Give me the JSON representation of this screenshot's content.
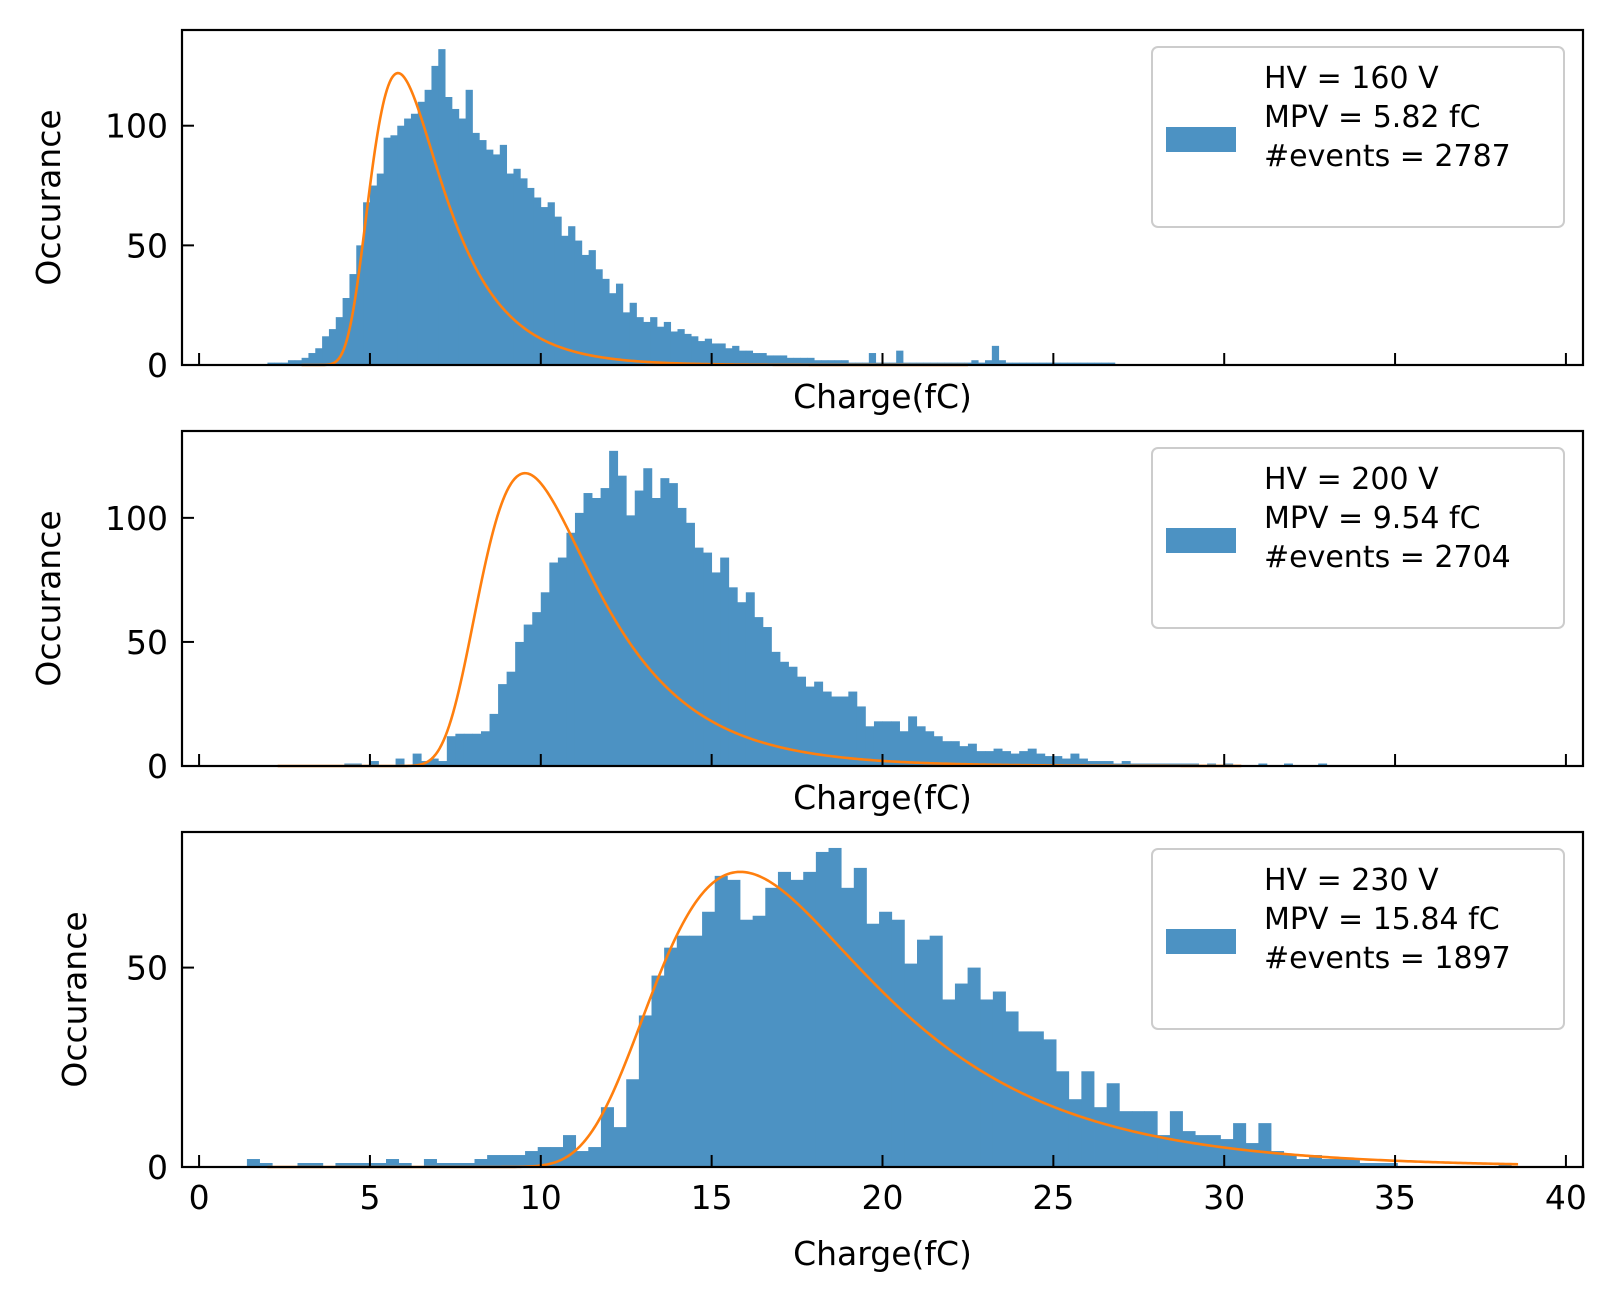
{
  "colors": {
    "histogram": "#4c92c3",
    "fit_curve": "#ff7f0e",
    "axes": "#000000",
    "legend_border": "#cccccc"
  },
  "chart_data": [
    {
      "type": "bar",
      "subtype": "histogram with Landau fit",
      "xlabel": "Charge(fC)",
      "ylabel": "Occurance",
      "xlim": [
        -0.5,
        40.5
      ],
      "ylim": [
        0,
        140
      ],
      "xticks": [
        0,
        5,
        10,
        15,
        20,
        25,
        30,
        35,
        40
      ],
      "xtick_labels_visible": false,
      "yticks": [
        0,
        50,
        100
      ],
      "legend": {
        "position": "top-right",
        "lines": [
          "HV = 160 V",
          "MPV = 5.82 fC",
          "#events = 2787"
        ]
      },
      "histogram": {
        "bin_start": 2.0,
        "bin_width": 0.2,
        "counts": [
          1,
          1,
          1,
          2,
          2,
          3,
          5,
          7,
          12,
          15,
          20,
          28,
          38,
          50,
          68,
          75,
          80,
          95,
          96,
          100,
          103,
          105,
          110,
          115,
          125,
          132,
          112,
          107,
          103,
          115,
          97,
          94,
          90,
          88,
          92,
          80,
          82,
          78,
          74,
          70,
          66,
          68,
          62,
          54,
          58,
          52,
          46,
          48,
          40,
          36,
          30,
          34,
          22,
          26,
          20,
          18,
          20,
          16,
          18,
          14,
          15,
          13,
          12,
          10,
          11,
          9,
          9,
          7,
          8,
          6,
          6,
          5,
          5,
          4,
          4,
          4,
          3,
          3,
          3,
          3,
          2,
          2,
          2,
          2,
          2,
          1,
          1,
          1,
          5,
          1,
          1,
          1,
          6,
          1,
          1,
          1,
          1,
          1,
          1,
          1,
          1,
          1,
          1,
          2,
          1,
          2,
          8,
          2,
          1,
          1,
          1,
          1,
          1,
          1,
          1,
          1,
          1,
          1,
          1,
          1,
          1,
          1,
          1,
          1
        ]
      },
      "fit": {
        "function": "landau",
        "mpv": 5.82,
        "width": 0.72,
        "peak": 122,
        "x_range": [
          3.0,
          22.5
        ]
      }
    },
    {
      "type": "bar",
      "subtype": "histogram with Landau fit",
      "xlabel": "Charge(fC)",
      "ylabel": "Occurance",
      "xlim": [
        -0.5,
        40.5
      ],
      "ylim": [
        0,
        135
      ],
      "xticks": [
        0,
        5,
        10,
        15,
        20,
        25,
        30,
        35,
        40
      ],
      "xtick_labels_visible": false,
      "yticks": [
        0,
        50,
        100
      ],
      "legend": {
        "position": "top-right",
        "lines": [
          "HV = 200 V",
          "MPV = 9.54 fC",
          "#events = 2704"
        ]
      },
      "histogram": {
        "bin_start": 2.5,
        "bin_width": 0.25,
        "counts": [
          0,
          0,
          0,
          0,
          0,
          0,
          0,
          1,
          1,
          0,
          2,
          0,
          0,
          3,
          0,
          5,
          2,
          3,
          2,
          12,
          13,
          13,
          13,
          14,
          21,
          33,
          38,
          50,
          57,
          62,
          70,
          82,
          84,
          94,
          102,
          110,
          108,
          112,
          127,
          117,
          101,
          111,
          120,
          108,
          116,
          114,
          104,
          98,
          88,
          86,
          78,
          84,
          72,
          66,
          70,
          60,
          56,
          46,
          42,
          40,
          36,
          32,
          34,
          30,
          28,
          28,
          30,
          24,
          16,
          18,
          18,
          18,
          14,
          20,
          16,
          14,
          12,
          10,
          10,
          8,
          9,
          6,
          6,
          7,
          6,
          5,
          6,
          7,
          5,
          4,
          4,
          3,
          5,
          3,
          2,
          2,
          2,
          1,
          2,
          1,
          1,
          1,
          1,
          1,
          1,
          1,
          1,
          0,
          1,
          0,
          1,
          0,
          0,
          0,
          1,
          0,
          0,
          1,
          0,
          0,
          0,
          1
        ]
      },
      "fit": {
        "function": "landau",
        "mpv": 9.54,
        "width": 1.15,
        "peak": 118,
        "x_range": [
          2.3,
          30.5
        ]
      }
    },
    {
      "type": "bar",
      "subtype": "histogram with Landau fit",
      "xlabel": "Charge(fC)",
      "ylabel": "Occurance",
      "xlim": [
        -0.5,
        40.5
      ],
      "ylim": [
        0,
        84
      ],
      "xticks": [
        0,
        5,
        10,
        15,
        20,
        25,
        30,
        35,
        40
      ],
      "xtick_labels_visible": true,
      "yticks": [
        0,
        50
      ],
      "legend": {
        "position": "top-right",
        "lines": [
          "HV = 230 V",
          "MPV = 15.84 fC",
          "#events = 1897"
        ]
      },
      "histogram": {
        "bin_start": 1.4,
        "bin_width": 0.37,
        "counts": [
          2,
          1,
          0,
          0,
          1,
          1,
          0,
          1,
          1,
          1,
          1,
          2,
          1,
          0,
          2,
          1,
          1,
          1,
          2,
          3,
          3,
          3,
          4,
          5,
          5,
          8,
          4,
          5,
          15,
          10,
          22,
          38,
          48,
          55,
          58,
          58,
          64,
          73,
          72,
          62,
          63,
          70,
          74,
          72,
          74,
          79,
          80,
          70,
          75,
          61,
          64,
          62,
          51,
          57,
          58,
          42,
          46,
          50,
          42,
          44,
          39,
          34,
          34,
          32,
          24,
          17,
          24,
          15,
          21,
          14,
          14,
          14,
          8,
          14,
          9,
          8,
          8,
          7,
          11,
          6,
          11,
          4,
          3,
          2,
          3,
          2,
          2,
          2,
          1,
          1,
          1,
          0,
          0,
          0,
          0,
          0,
          0,
          0,
          0,
          1
        ]
      },
      "fit": {
        "function": "landau",
        "mpv": 15.84,
        "width": 2.2,
        "peak": 74,
        "x_range": [
          2.0,
          38.6
        ]
      }
    }
  ]
}
